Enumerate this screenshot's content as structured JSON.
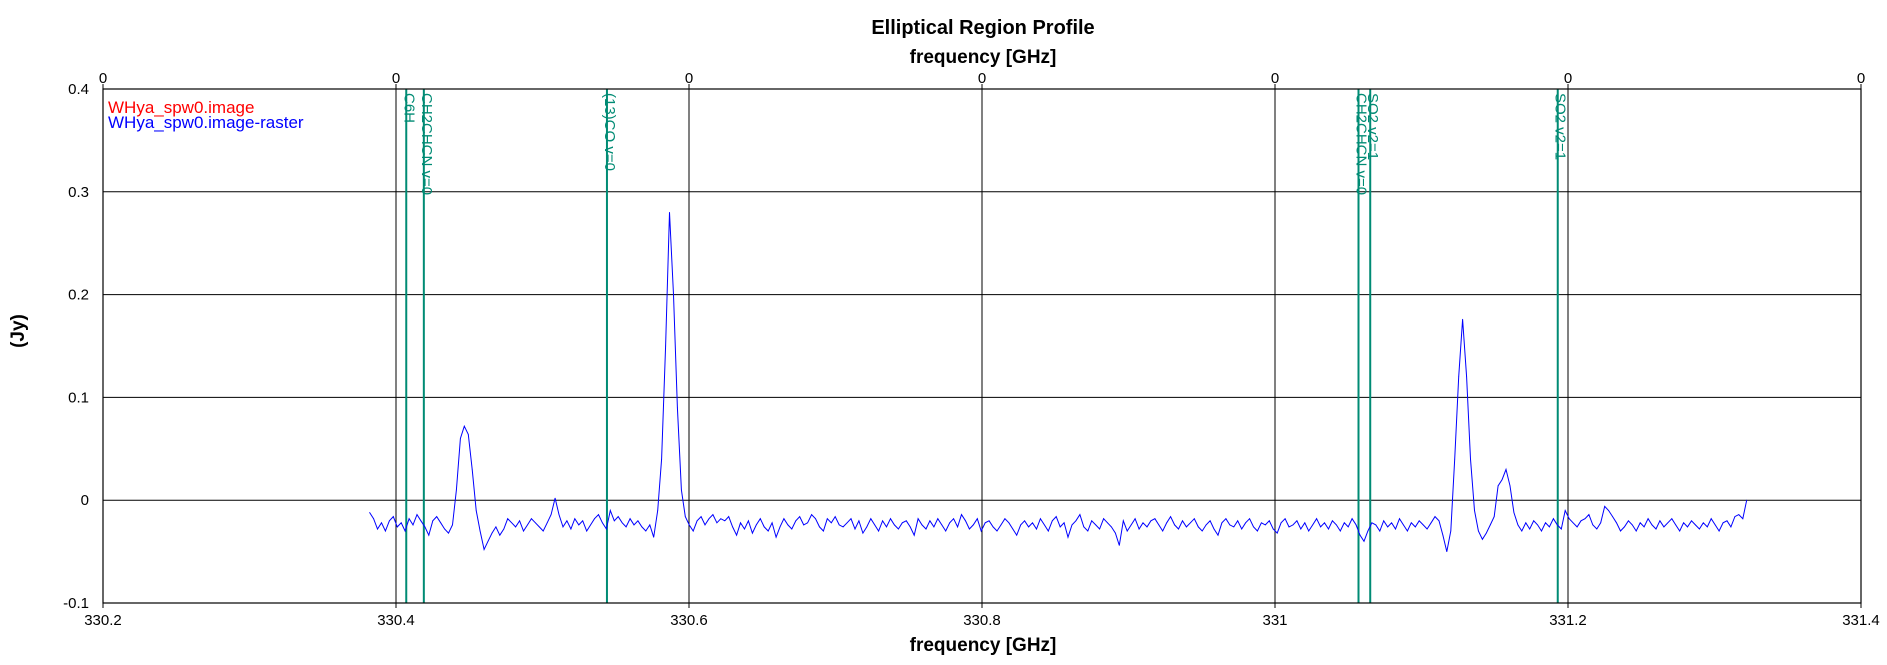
{
  "chart_data": {
    "type": "line",
    "title": "Elliptical Region Profile",
    "xlabel_top": "frequency [GHz]",
    "xlabel": "frequency [GHz]",
    "ylabel": "(Jy)",
    "xlim": [
      330.2,
      331.4
    ],
    "ylim": [
      -0.1,
      0.4
    ],
    "x_ticks": [
      330.2,
      330.4,
      330.6,
      330.8,
      331.0,
      331.2,
      331.4
    ],
    "x_tick_labels": [
      "330.2",
      "330.4",
      "330.6",
      "330.8",
      "331",
      "331.2",
      "331.4"
    ],
    "x_top_tick_labels": [
      "0",
      "0",
      "0",
      "0",
      "0",
      "0",
      "0"
    ],
    "y_ticks": [
      -0.1,
      0,
      0.1,
      0.2,
      0.3,
      0.4
    ],
    "y_tick_labels": [
      "-0.1",
      "0",
      "0.1",
      "0.2",
      "0.3",
      "0.4"
    ],
    "grid": true,
    "legend_position": "top-left",
    "legend": [
      {
        "name": "WHya_spw0.image",
        "color": "#ff0000"
      },
      {
        "name": "WHya_spw0.image-raster",
        "color": "#0000ff"
      }
    ],
    "colors": {
      "series": "#0000ff",
      "line_markers": "#008b74",
      "axis": "#000000"
    },
    "spectral_lines": [
      {
        "label": "C6H",
        "x": 330.407
      },
      {
        "label": "CH2CHCN v=0",
        "x": 330.419
      },
      {
        "label": "(13)CO v=0",
        "x": 330.544
      },
      {
        "label": "CH2CHCN v=0",
        "x": 331.057
      },
      {
        "label": "SO2 v2=1",
        "x": 331.065
      },
      {
        "label": "SO2 v2=1",
        "x": 331.193
      }
    ],
    "series": [
      {
        "name": "WHya_spw0.image-raster",
        "x_start": 330.382,
        "x_end": 331.322,
        "values": [
          -0.012,
          -0.018,
          -0.028,
          -0.022,
          -0.03,
          -0.02,
          -0.016,
          -0.026,
          -0.022,
          -0.03,
          -0.018,
          -0.024,
          -0.014,
          -0.02,
          -0.026,
          -0.034,
          -0.02,
          -0.016,
          -0.022,
          -0.028,
          -0.032,
          -0.024,
          0.01,
          0.06,
          0.072,
          0.064,
          0.03,
          -0.01,
          -0.03,
          -0.048,
          -0.04,
          -0.032,
          -0.026,
          -0.034,
          -0.028,
          -0.018,
          -0.022,
          -0.026,
          -0.02,
          -0.03,
          -0.024,
          -0.018,
          -0.022,
          -0.026,
          -0.03,
          -0.022,
          -0.014,
          0.002,
          -0.014,
          -0.026,
          -0.02,
          -0.028,
          -0.018,
          -0.024,
          -0.02,
          -0.03,
          -0.024,
          -0.018,
          -0.014,
          -0.022,
          -0.028,
          -0.01,
          -0.02,
          -0.016,
          -0.022,
          -0.026,
          -0.018,
          -0.024,
          -0.02,
          -0.026,
          -0.03,
          -0.024,
          -0.036,
          -0.01,
          0.04,
          0.15,
          0.28,
          0.2,
          0.09,
          0.01,
          -0.016,
          -0.024,
          -0.03,
          -0.02,
          -0.016,
          -0.024,
          -0.018,
          -0.014,
          -0.022,
          -0.018,
          -0.02,
          -0.016,
          -0.026,
          -0.034,
          -0.022,
          -0.028,
          -0.02,
          -0.032,
          -0.024,
          -0.018,
          -0.026,
          -0.03,
          -0.022,
          -0.036,
          -0.026,
          -0.018,
          -0.024,
          -0.028,
          -0.02,
          -0.016,
          -0.024,
          -0.022,
          -0.014,
          -0.018,
          -0.026,
          -0.03,
          -0.018,
          -0.022,
          -0.016,
          -0.024,
          -0.026,
          -0.022,
          -0.018,
          -0.028,
          -0.02,
          -0.032,
          -0.026,
          -0.018,
          -0.024,
          -0.03,
          -0.02,
          -0.026,
          -0.018,
          -0.024,
          -0.028,
          -0.022,
          -0.02,
          -0.026,
          -0.034,
          -0.018,
          -0.024,
          -0.028,
          -0.02,
          -0.026,
          -0.018,
          -0.024,
          -0.03,
          -0.022,
          -0.018,
          -0.026,
          -0.014,
          -0.02,
          -0.028,
          -0.024,
          -0.018,
          -0.03,
          -0.022,
          -0.02,
          -0.026,
          -0.03,
          -0.024,
          -0.018,
          -0.022,
          -0.028,
          -0.034,
          -0.024,
          -0.02,
          -0.026,
          -0.022,
          -0.028,
          -0.018,
          -0.024,
          -0.03,
          -0.02,
          -0.016,
          -0.026,
          -0.022,
          -0.036,
          -0.024,
          -0.02,
          -0.014,
          -0.026,
          -0.03,
          -0.02,
          -0.024,
          -0.028,
          -0.018,
          -0.022,
          -0.026,
          -0.032,
          -0.044,
          -0.02,
          -0.03,
          -0.024,
          -0.018,
          -0.028,
          -0.022,
          -0.026,
          -0.02,
          -0.018,
          -0.024,
          -0.03,
          -0.022,
          -0.016,
          -0.024,
          -0.028,
          -0.02,
          -0.026,
          -0.022,
          -0.018,
          -0.026,
          -0.03,
          -0.024,
          -0.02,
          -0.028,
          -0.034,
          -0.022,
          -0.018,
          -0.024,
          -0.026,
          -0.02,
          -0.028,
          -0.022,
          -0.018,
          -0.026,
          -0.03,
          -0.022,
          -0.024,
          -0.02,
          -0.028,
          -0.032,
          -0.022,
          -0.018,
          -0.026,
          -0.024,
          -0.02,
          -0.028,
          -0.022,
          -0.03,
          -0.024,
          -0.018,
          -0.026,
          -0.022,
          -0.028,
          -0.02,
          -0.024,
          -0.03,
          -0.022,
          -0.026,
          -0.018,
          -0.024,
          -0.034,
          -0.04,
          -0.03,
          -0.022,
          -0.024,
          -0.03,
          -0.02,
          -0.026,
          -0.022,
          -0.028,
          -0.018,
          -0.024,
          -0.03,
          -0.022,
          -0.026,
          -0.02,
          -0.024,
          -0.028,
          -0.022,
          -0.016,
          -0.02,
          -0.034,
          -0.05,
          -0.03,
          0.04,
          0.12,
          0.176,
          0.12,
          0.04,
          -0.01,
          -0.03,
          -0.038,
          -0.032,
          -0.024,
          -0.016,
          0.014,
          0.02,
          0.03,
          0.014,
          -0.012,
          -0.024,
          -0.03,
          -0.022,
          -0.028,
          -0.02,
          -0.024,
          -0.03,
          -0.022,
          -0.026,
          -0.018,
          -0.024,
          -0.028,
          -0.01,
          -0.018,
          -0.022,
          -0.026,
          -0.02,
          -0.018,
          -0.014,
          -0.024,
          -0.028,
          -0.022,
          -0.006,
          -0.01,
          -0.016,
          -0.022,
          -0.03,
          -0.026,
          -0.02,
          -0.024,
          -0.03,
          -0.022,
          -0.026,
          -0.018,
          -0.024,
          -0.028,
          -0.02,
          -0.026,
          -0.022,
          -0.018,
          -0.024,
          -0.03,
          -0.022,
          -0.026,
          -0.02,
          -0.024,
          -0.028,
          -0.022,
          -0.026,
          -0.018,
          -0.024,
          -0.03,
          -0.022,
          -0.02,
          -0.026,
          -0.016,
          -0.014,
          -0.018,
          0.0
        ]
      }
    ]
  }
}
